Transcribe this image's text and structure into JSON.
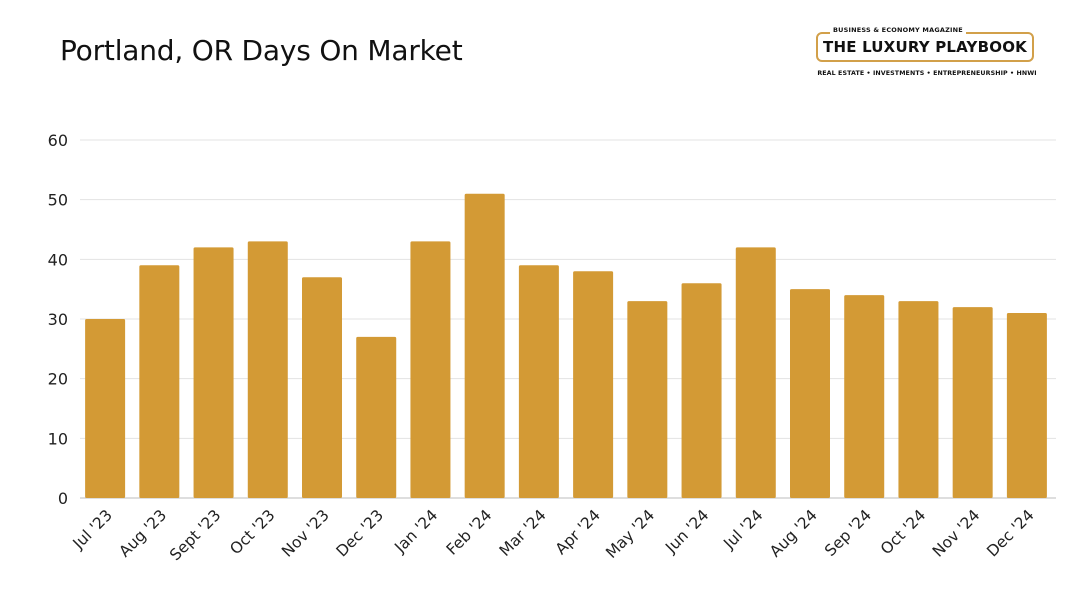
{
  "header": {
    "title": "Portland, OR Days On Market"
  },
  "logo": {
    "tagline_top": "BUSINESS & ECONOMY MAGAZINE",
    "name": "THE LUXURY PLAYBOOK",
    "tagline_bottom": "REAL ESTATE • INVESTMENTS • ENTREPRENEURSHIP • HNWI",
    "border_color": "#d2a04a"
  },
  "chart_data": {
    "type": "bar",
    "title": "Portland, OR Days On Market",
    "xlabel": "",
    "ylabel": "",
    "ylim": [
      0,
      60
    ],
    "yticks": [
      0,
      10,
      20,
      30,
      40,
      50,
      60
    ],
    "grid": true,
    "bar_color": "#d39a35",
    "categories": [
      "Jul '23",
      "Aug '23",
      "Sept '23",
      "Oct '23",
      "Nov '23",
      "Dec '23",
      "Jan '24",
      "Feb '24",
      "Mar '24",
      "Apr '24",
      "May '24",
      "Jun '24",
      "Jul '24",
      "Aug '24",
      "Sep '24",
      "Oct '24",
      "Nov '24",
      "Dec '24"
    ],
    "values": [
      30,
      39,
      42,
      43,
      37,
      27,
      43,
      51,
      39,
      38,
      33,
      36,
      42,
      35,
      34,
      33,
      32,
      31
    ]
  }
}
